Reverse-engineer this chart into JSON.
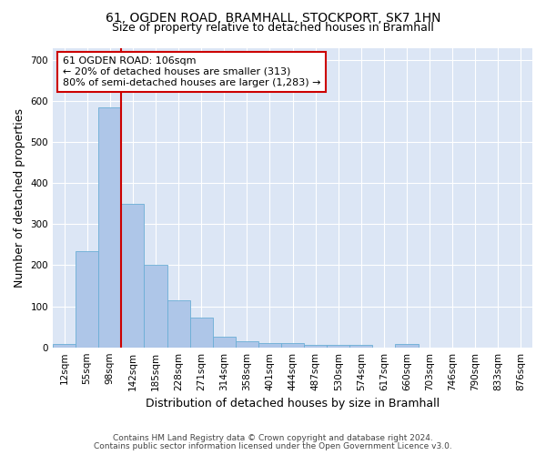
{
  "title_line1": "61, OGDEN ROAD, BRAMHALL, STOCKPORT, SK7 1HN",
  "title_line2": "Size of property relative to detached houses in Bramhall",
  "xlabel": "Distribution of detached houses by size in Bramhall",
  "ylabel": "Number of detached properties",
  "bar_color": "#aec6e8",
  "bar_edge_color": "#6baed6",
  "background_color": "#dce6f5",
  "annotation_text": "61 OGDEN ROAD: 106sqm\n← 20% of detached houses are smaller (313)\n80% of semi-detached houses are larger (1,283) →",
  "vline_x": 2.5,
  "vline_color": "#cc0000",
  "annotation_box_facecolor": "#ffffff",
  "annotation_box_edgecolor": "#cc0000",
  "categories": [
    "12sqm",
    "55sqm",
    "98sqm",
    "142sqm",
    "185sqm",
    "228sqm",
    "271sqm",
    "314sqm",
    "358sqm",
    "401sqm",
    "444sqm",
    "487sqm",
    "530sqm",
    "574sqm",
    "617sqm",
    "660sqm",
    "703sqm",
    "746sqm",
    "790sqm",
    "833sqm",
    "876sqm"
  ],
  "values": [
    8,
    235,
    585,
    350,
    200,
    115,
    73,
    25,
    15,
    10,
    10,
    5,
    5,
    5,
    0,
    8,
    0,
    0,
    0,
    0,
    0
  ],
  "ylim": [
    0,
    730
  ],
  "yticks": [
    0,
    100,
    200,
    300,
    400,
    500,
    600,
    700
  ],
  "footer_line1": "Contains HM Land Registry data © Crown copyright and database right 2024.",
  "footer_line2": "Contains public sector information licensed under the Open Government Licence v3.0.",
  "title_fontsize": 10,
  "subtitle_fontsize": 9,
  "ylabel_fontsize": 9,
  "xlabel_fontsize": 9,
  "tick_fontsize": 7.5,
  "footer_fontsize": 6.5,
  "annotation_fontsize": 8
}
